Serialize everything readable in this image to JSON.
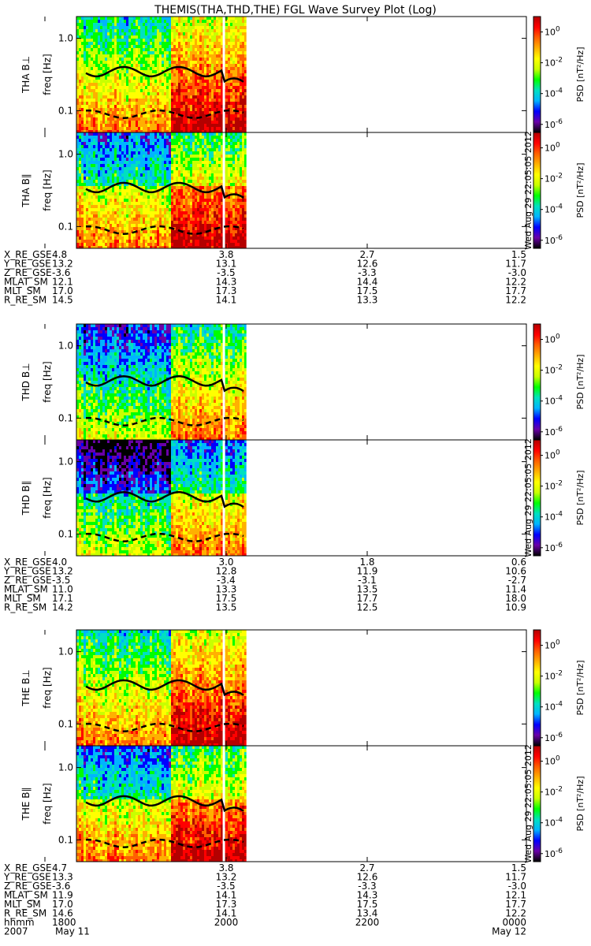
{
  "title": "THEMIS(THA,THD,THE) FGL Wave Survey Plot (Log)",
  "date_stamp": "Wed Aug 29 22:05:05 2012",
  "colorbar": {
    "label": "PSD [nT²/Hz]",
    "ticks": [
      {
        "exp": "0",
        "value": 1
      },
      {
        "exp": "-2",
        "value": 0.01
      },
      {
        "exp": "-4",
        "value": 0.0001
      },
      {
        "exp": "-6",
        "value": 1e-06
      }
    ],
    "colors": [
      "#000000",
      "#6a00a8",
      "#0000ff",
      "#00b4ff",
      "#00e0c0",
      "#00ff00",
      "#c8ff00",
      "#ffff00",
      "#ffb000",
      "#ff6000",
      "#ff0000",
      "#b40000"
    ]
  },
  "chart_data": {
    "type": "heatmap",
    "x_range_hhmm": [
      "1800",
      "0000"
    ],
    "x_data_end_hhmm": "2016",
    "ylim_hz": [
      0.05,
      2.0
    ],
    "y_scale": "log",
    "y_ticks": [
      "1.0",
      "0.1"
    ],
    "ylabel_unit": "freq [Hz]",
    "probes": [
      {
        "name": "THA",
        "panels": [
          {
            "label": "THA B⊥",
            "solid_line_hz": 0.35,
            "dashed_line_hz": 0.09
          },
          {
            "label": "THA B∥",
            "solid_line_hz": 0.35,
            "dashed_line_hz": 0.09
          }
        ],
        "ephemeris": [
          {
            "name": "X_RE_GSE",
            "values": [
              "4.8",
              "3.8",
              "2.7",
              "1.5"
            ]
          },
          {
            "name": "Y_RE_GSE",
            "values": [
              "13.2",
              "13.1",
              "12.6",
              "11.7"
            ]
          },
          {
            "name": "Z_RE_GSE",
            "values": [
              "-3.6",
              "-3.5",
              "-3.3",
              "-3.0"
            ]
          },
          {
            "name": "MLAT_SM",
            "values": [
              "12.1",
              "14.3",
              "14.4",
              "12.2"
            ]
          },
          {
            "name": "MLT_SM",
            "values": [
              "17.0",
              "17.3",
              "17.5",
              "17.7"
            ]
          },
          {
            "name": "R_RE_SM",
            "values": [
              "14.5",
              "14.1",
              "13.3",
              "12.2"
            ]
          }
        ]
      },
      {
        "name": "THD",
        "panels": [
          {
            "label": "THD B⊥",
            "solid_line_hz": 0.33,
            "dashed_line_hz": 0.09
          },
          {
            "label": "THD B∥",
            "solid_line_hz": 0.33,
            "dashed_line_hz": 0.09
          }
        ],
        "ephemeris": [
          {
            "name": "X_RE_GSE",
            "values": [
              "4.0",
              "3.0",
              "1.8",
              "0.6"
            ]
          },
          {
            "name": "Y_RE_GSE",
            "values": [
              "13.2",
              "12.8",
              "11.9",
              "10.6"
            ]
          },
          {
            "name": "Z_RE_GSE",
            "values": [
              "-3.5",
              "-3.4",
              "-3.1",
              "-2.7"
            ]
          },
          {
            "name": "MLAT_SM",
            "values": [
              "11.0",
              "13.3",
              "13.5",
              "11.4"
            ]
          },
          {
            "name": "MLT_SM",
            "values": [
              "17.1",
              "17.5",
              "17.7",
              "18.0"
            ]
          },
          {
            "name": "R_RE_SM",
            "values": [
              "14.2",
              "13.5",
              "12.5",
              "10.9"
            ]
          }
        ]
      },
      {
        "name": "THE",
        "panels": [
          {
            "label": "THE B⊥",
            "solid_line_hz": 0.35,
            "dashed_line_hz": 0.09
          },
          {
            "label": "THE B∥",
            "solid_line_hz": 0.35,
            "dashed_line_hz": 0.09
          }
        ],
        "ephemeris": [
          {
            "name": "X_RE_GSE",
            "values": [
              "4.7",
              "3.8",
              "2.7",
              "1.5"
            ]
          },
          {
            "name": "Y_RE_GSE",
            "values": [
              "13.3",
              "13.2",
              "12.6",
              "11.7"
            ]
          },
          {
            "name": "Z_RE_GSE",
            "values": [
              "-3.6",
              "-3.5",
              "-3.3",
              "-3.0"
            ]
          },
          {
            "name": "MLAT_SM",
            "values": [
              "11.9",
              "14.1",
              "14.3",
              "12.1"
            ]
          },
          {
            "name": "MLT_SM",
            "values": [
              "17.0",
              "17.3",
              "17.5",
              "17.7"
            ]
          },
          {
            "name": "R_RE_SM",
            "values": [
              "14.6",
              "14.1",
              "13.4",
              "12.2"
            ]
          },
          {
            "name": "hhmm",
            "values": [
              "1800",
              "2000",
              "2200",
              "0000"
            ]
          }
        ]
      }
    ],
    "footer": {
      "year": "2007",
      "start_date": "May 11",
      "end_date": "May 12"
    }
  }
}
